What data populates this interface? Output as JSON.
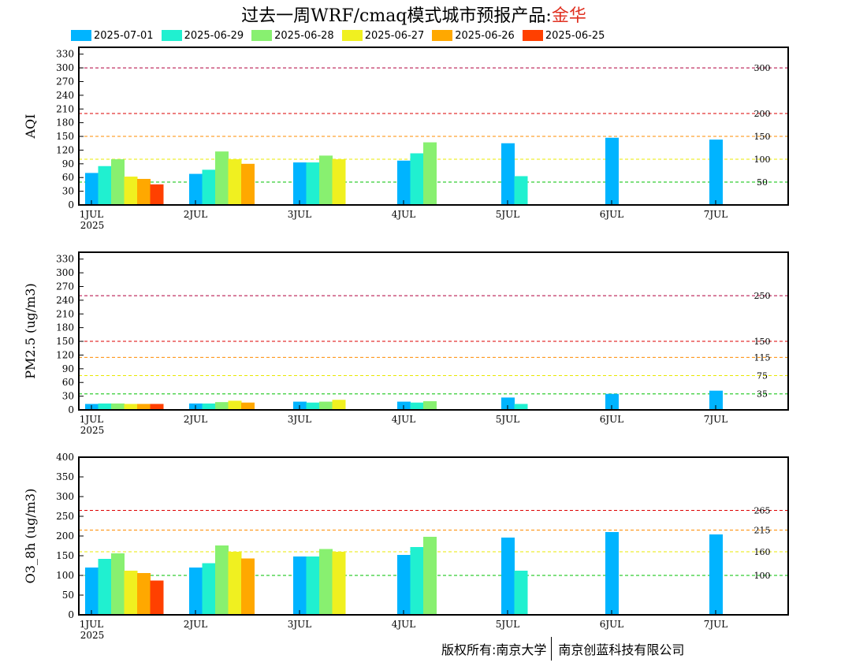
{
  "title": {
    "prefix": "过去一周WRF/cmaq模式城市预报产品:",
    "city": "金华"
  },
  "legend": [
    {
      "label": "2025-07-01",
      "color": "#00b4ff"
    },
    {
      "label": "2025-06-29",
      "color": "#20f0d0"
    },
    {
      "label": "2025-06-28",
      "color": "#88f070"
    },
    {
      "label": "2025-06-27",
      "color": "#f0f020"
    },
    {
      "label": "2025-06-26",
      "color": "#ffa800"
    },
    {
      "label": "2025-06-25",
      "color": "#ff4000"
    }
  ],
  "footer": {
    "left": "版权所有:南京大学",
    "right": "南京创蓝科技有限公司"
  },
  "chart_data": [
    {
      "type": "bar",
      "ylabel": "AQI",
      "ylim": [
        0,
        345
      ],
      "yticks": [
        0,
        30,
        60,
        90,
        120,
        150,
        180,
        210,
        240,
        270,
        300,
        330
      ],
      "categories": [
        "1JUL",
        "2JUL",
        "3JUL",
        "4JUL",
        "5JUL",
        "6JUL",
        "7JUL"
      ],
      "year_label": "2025",
      "thresholds": [
        {
          "value": 300,
          "label": "300",
          "color": "#b0003c"
        },
        {
          "value": 200,
          "label": "200",
          "color": "#dd0000"
        },
        {
          "value": 150,
          "label": "150",
          "color": "#ff8c00"
        },
        {
          "value": 100,
          "label": "100",
          "color": "#e8e800"
        },
        {
          "value": 50,
          "label": "50",
          "color": "#00c000"
        }
      ],
      "series": [
        {
          "name": "2025-07-01",
          "values": [
            70,
            68,
            93,
            97,
            135,
            147,
            143
          ]
        },
        {
          "name": "2025-06-29",
          "values": [
            85,
            77,
            93,
            113,
            63,
            null,
            null
          ]
        },
        {
          "name": "2025-06-28",
          "values": [
            100,
            117,
            108,
            137,
            null,
            null,
            null
          ]
        },
        {
          "name": "2025-06-27",
          "values": [
            62,
            100,
            100,
            null,
            null,
            null,
            null
          ]
        },
        {
          "name": "2025-06-26",
          "values": [
            57,
            90,
            null,
            null,
            null,
            null,
            null
          ]
        },
        {
          "name": "2025-06-25",
          "values": [
            45,
            null,
            null,
            null,
            null,
            null,
            null
          ]
        }
      ]
    },
    {
      "type": "bar",
      "ylabel": "PM2.5 (ug/m3)",
      "ylim": [
        0,
        345
      ],
      "yticks": [
        0,
        30,
        60,
        90,
        120,
        150,
        180,
        210,
        240,
        270,
        300,
        330
      ],
      "categories": [
        "1JUL",
        "2JUL",
        "3JUL",
        "4JUL",
        "5JUL",
        "6JUL",
        "7JUL"
      ],
      "year_label": "2025",
      "thresholds": [
        {
          "value": 250,
          "label": "250",
          "color": "#b0003c"
        },
        {
          "value": 150,
          "label": "150",
          "color": "#dd0000"
        },
        {
          "value": 115,
          "label": "115",
          "color": "#ff8c00"
        },
        {
          "value": 75,
          "label": "75",
          "color": "#e8e800"
        },
        {
          "value": 35,
          "label": "35",
          "color": "#00c000"
        }
      ],
      "series": [
        {
          "name": "2025-07-01",
          "values": [
            13,
            14,
            18,
            18,
            27,
            35,
            42
          ]
        },
        {
          "name": "2025-06-29",
          "values": [
            14,
            14,
            16,
            16,
            13,
            null,
            null
          ]
        },
        {
          "name": "2025-06-28",
          "values": [
            14,
            17,
            18,
            19,
            null,
            null,
            null
          ]
        },
        {
          "name": "2025-06-27",
          "values": [
            13,
            20,
            22,
            null,
            null,
            null,
            null
          ]
        },
        {
          "name": "2025-06-26",
          "values": [
            13,
            16,
            null,
            null,
            null,
            null,
            null
          ]
        },
        {
          "name": "2025-06-25",
          "values": [
            13,
            null,
            null,
            null,
            null,
            null,
            null
          ]
        }
      ]
    },
    {
      "type": "bar",
      "ylabel": "O3_8h (ug/m3)",
      "ylim": [
        0,
        400
      ],
      "yticks": [
        0,
        50,
        100,
        150,
        200,
        250,
        300,
        350,
        400
      ],
      "categories": [
        "1JUL",
        "2JUL",
        "3JUL",
        "4JUL",
        "5JUL",
        "6JUL",
        "7JUL"
      ],
      "year_label": "2025",
      "thresholds": [
        {
          "value": 265,
          "label": "265",
          "color": "#dd0000"
        },
        {
          "value": 215,
          "label": "215",
          "color": "#ff8c00"
        },
        {
          "value": 160,
          "label": "160",
          "color": "#e8e800"
        },
        {
          "value": 100,
          "label": "100",
          "color": "#00c000"
        }
      ],
      "series": [
        {
          "name": "2025-07-01",
          "values": [
            120,
            120,
            148,
            152,
            196,
            210,
            204
          ]
        },
        {
          "name": "2025-06-29",
          "values": [
            142,
            131,
            148,
            172,
            112,
            null,
            null
          ]
        },
        {
          "name": "2025-06-28",
          "values": [
            156,
            176,
            167,
            198,
            null,
            null,
            null
          ]
        },
        {
          "name": "2025-06-27",
          "values": [
            112,
            160,
            160,
            null,
            null,
            null,
            null
          ]
        },
        {
          "name": "2025-06-26",
          "values": [
            106,
            143,
            null,
            null,
            null,
            null,
            null
          ]
        },
        {
          "name": "2025-06-25",
          "values": [
            87,
            null,
            null,
            null,
            null,
            null,
            null
          ]
        }
      ]
    }
  ]
}
